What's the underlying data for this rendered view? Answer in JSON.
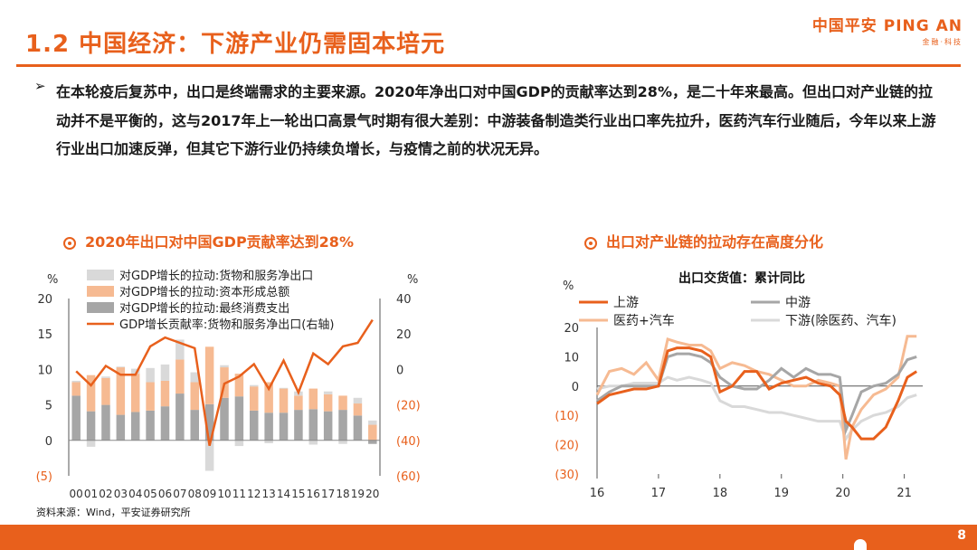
{
  "header": {
    "title": "1.2 中国经济：下游产业仍需固本培元",
    "logo_main": "中国平安 PING AN",
    "logo_sub": "金融·科技",
    "brand_color": "#E8601C"
  },
  "bullet": {
    "marker": "➢",
    "text": "在本轮疫后复苏中，出口是终端需求的主要来源。2020年净出口对中国GDP的贡献率达到28%，是二十年来最高。但出口对产业链的拉动并不是平衡的，这与2017年上一轮出口高景气时期有很大差别：中游装备制造类行业出口率先拉升，医药汽车行业随后，今年以来上游行业出口加速反弹，但其它下游行业仍持续负增长，与疫情之前的状况无异。"
  },
  "left_chart_title": "2020年出口对中国GDP贡献率达到28%",
  "right_chart_title": "出口对产业链的拉动存在高度分化",
  "source": "资料来源：Wind，平安证券研究所",
  "footer": {
    "page": "8"
  },
  "chart_data": [
    {
      "type": "bar",
      "stacked": true,
      "title": "",
      "categories": [
        "00",
        "01",
        "02",
        "03",
        "04",
        "05",
        "06",
        "07",
        "08",
        "09",
        "10",
        "11",
        "12",
        "13",
        "14",
        "15",
        "16",
        "17",
        "18",
        "19",
        "20"
      ],
      "xlabel": "",
      "ylabel": "%",
      "ylabel_right": "%",
      "ylim": [
        -5,
        20
      ],
      "yticks": [
        "(5)",
        "0",
        "5",
        "10",
        "15",
        "20"
      ],
      "ylim_right": [
        -60,
        40
      ],
      "yticks_right": [
        "(60)",
        "(40)",
        "(20)",
        "0",
        "20",
        "40"
      ],
      "series": [
        {
          "name": "对GDP增长的拉动:最终消费支出",
          "color": "#A6A6A6",
          "values": [
            6.3,
            4.1,
            5.0,
            3.6,
            4.0,
            4.2,
            4.8,
            6.6,
            4.3,
            5.1,
            6.0,
            6.2,
            4.2,
            3.9,
            3.9,
            4.3,
            4.4,
            4.1,
            4.3,
            3.5,
            -0.5
          ]
        },
        {
          "name": "对GDP增长的拉动:资本形成总额",
          "color": "#F6BA92",
          "values": [
            1.9,
            5.1,
            3.8,
            6.7,
            5.4,
            4.0,
            3.6,
            4.8,
            3.9,
            8.1,
            4.3,
            3.2,
            3.4,
            4.3,
            3.4,
            2.0,
            2.9,
            2.4,
            2.0,
            1.7,
            2.2
          ]
        },
        {
          "name": "对GDP增长的拉动:货物和服务净出口",
          "color": "#D9D9D9",
          "values": [
            0.2,
            -0.9,
            0.2,
            0.1,
            0.7,
            2.0,
            2.3,
            2.8,
            1.4,
            -4.3,
            0.3,
            -0.8,
            0.2,
            -0.4,
            0.1,
            0.6,
            -0.6,
            0.4,
            -0.5,
            0.8,
            0.6
          ]
        },
        {
          "name": "GDP增长贡献率:货物和服务净出口(右轴)",
          "color": "#E8601C",
          "axis": "right",
          "kind": "line",
          "values": [
            -1,
            -9,
            2,
            -3,
            -3,
            13,
            18,
            15,
            12,
            -43,
            -8,
            -4,
            3,
            -11,
            5,
            -13,
            9,
            3,
            13,
            15,
            28
          ]
        }
      ],
      "legend": "top-left"
    },
    {
      "type": "line",
      "title": "出口交货值：累计同比",
      "ylabel": "%",
      "xlabel": "",
      "x_ticks": [
        "16",
        "17",
        "18",
        "19",
        "20",
        "21"
      ],
      "ylim": [
        -30,
        20
      ],
      "yticks": [
        "(30)",
        "(20)",
        "(10)",
        "0",
        "10",
        "20"
      ],
      "series": [
        {
          "name": "上游",
          "color": "#E8601C",
          "x": [
            16.0,
            16.2,
            16.4,
            16.6,
            16.8,
            17.0,
            17.15,
            17.3,
            17.5,
            17.7,
            17.85,
            18.0,
            18.2,
            18.4,
            18.6,
            18.8,
            19.0,
            19.2,
            19.4,
            19.6,
            19.8,
            19.95,
            20.05,
            20.15,
            20.3,
            20.5,
            20.7,
            20.9,
            21.05,
            21.2
          ],
          "y": [
            -6,
            -3,
            -2,
            -1,
            -1,
            0,
            12,
            13,
            13,
            12,
            10,
            -2,
            0,
            5,
            5,
            -1,
            1,
            2,
            3,
            1,
            0,
            -3,
            -12,
            -14,
            -18,
            -18,
            -14,
            -5,
            3,
            5
          ]
        },
        {
          "name": "中游",
          "color": "#A6A6A6",
          "x": [
            16.0,
            16.2,
            16.4,
            16.6,
            16.8,
            17.0,
            17.15,
            17.3,
            17.5,
            17.7,
            17.85,
            18.0,
            18.2,
            18.4,
            18.6,
            18.8,
            19.0,
            19.2,
            19.4,
            19.6,
            19.8,
            19.95,
            20.05,
            20.15,
            20.3,
            20.5,
            20.7,
            20.9,
            21.05,
            21.2
          ],
          "y": [
            -5,
            -2,
            0,
            0,
            0,
            0,
            10,
            11,
            11,
            10,
            8,
            3,
            0,
            -1,
            -1,
            2,
            6,
            3,
            6,
            4,
            4,
            3,
            -15,
            -10,
            -2,
            0,
            1,
            4,
            9,
            10
          ]
        },
        {
          "name": "医药+汽车",
          "color": "#F6BA92",
          "x": [
            16.0,
            16.2,
            16.4,
            16.6,
            16.8,
            17.0,
            17.15,
            17.3,
            17.5,
            17.7,
            17.85,
            18.0,
            18.2,
            18.4,
            18.6,
            18.8,
            19.0,
            19.2,
            19.4,
            19.6,
            19.8,
            19.95,
            20.05,
            20.15,
            20.3,
            20.5,
            20.7,
            20.9,
            21.05,
            21.2
          ],
          "y": [
            -3,
            5,
            6,
            4,
            8,
            2,
            16,
            15,
            14,
            14,
            12,
            6,
            8,
            7,
            5,
            4,
            2,
            0,
            0,
            2,
            1,
            0,
            -25,
            -14,
            -8,
            -3,
            -1,
            3,
            17,
            17
          ]
        },
        {
          "name": "下游(除医药、汽车)",
          "color": "#D9D9D9",
          "x": [
            16.0,
            16.2,
            16.4,
            16.6,
            16.8,
            17.0,
            17.15,
            17.3,
            17.5,
            17.7,
            17.85,
            18.0,
            18.2,
            18.4,
            18.6,
            18.8,
            19.0,
            19.2,
            19.4,
            19.6,
            19.8,
            19.95,
            20.05,
            20.15,
            20.3,
            20.5,
            20.7,
            20.9,
            21.05,
            21.2
          ],
          "y": [
            -1,
            0,
            0,
            1,
            1,
            1,
            3,
            2,
            3,
            2,
            1,
            -5,
            -7,
            -7,
            -8,
            -9,
            -9,
            -10,
            -11,
            -12,
            -12,
            -12,
            -18,
            -15,
            -12,
            -10,
            -9,
            -7,
            -4,
            -3
          ]
        }
      ],
      "legend": "top"
    }
  ]
}
